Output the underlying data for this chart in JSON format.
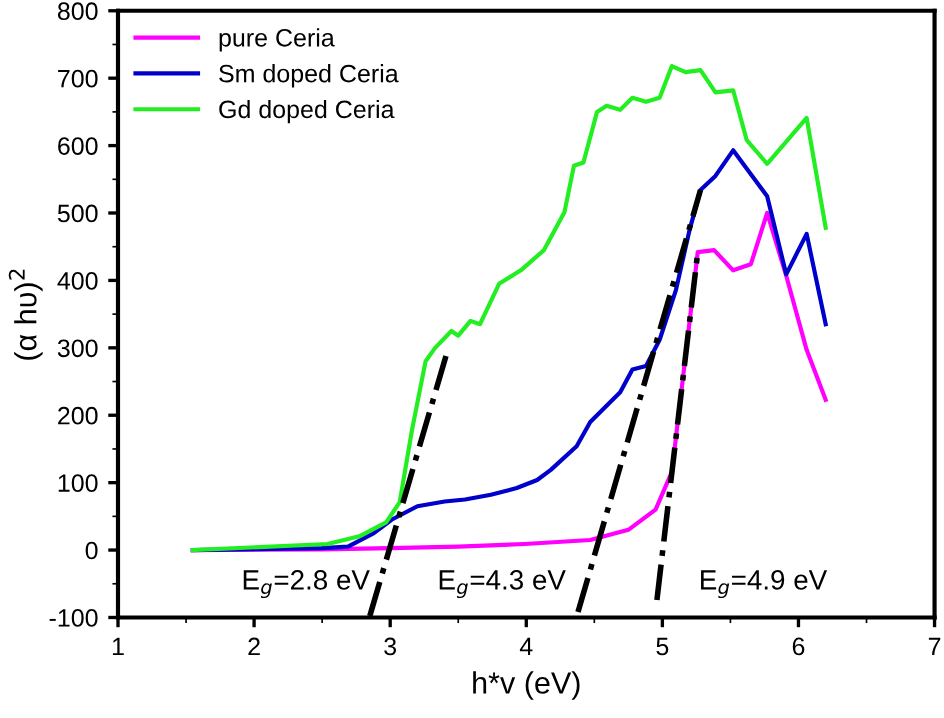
{
  "chart_data": {
    "type": "line",
    "xlabel": "h*v (eV)",
    "ylabel": "(α hυ)$^{2}$",
    "xlim": [
      1,
      7
    ],
    "xticks": [
      1,
      2,
      3,
      4,
      5,
      6,
      7
    ],
    "ylim": [
      -100,
      800
    ],
    "yticks": [
      -100,
      0,
      100,
      200,
      300,
      400,
      500,
      600,
      700,
      800
    ],
    "grid": false,
    "legend": "top left",
    "marker": "none",
    "line_style": "solid",
    "series": [
      {
        "name": "pure Ceria",
        "color": "#ff00ff",
        "x": [
          1.55,
          2.5,
          3.0,
          3.5,
          3.99,
          4.47,
          4.75,
          4.95,
          5.07,
          5.26,
          5.38,
          5.52,
          5.65,
          5.77,
          5.91,
          6.06,
          6.2
        ],
        "values": [
          0,
          1,
          3,
          5,
          9,
          15,
          30,
          60,
          116,
          442,
          445,
          415,
          424,
          500,
          407,
          297,
          223
        ]
      },
      {
        "name": "Sm doped Ceria",
        "color": "#0000cc",
        "x": [
          1.55,
          2.5,
          2.69,
          2.88,
          3.01,
          3.2,
          3.4,
          3.55,
          3.74,
          3.93,
          4.08,
          4.18,
          4.37,
          4.47,
          4.59,
          4.69,
          4.78,
          4.88,
          4.98,
          5.1,
          5.2,
          5.28,
          5.39,
          5.52,
          5.77,
          5.91,
          6.06,
          6.2
        ],
        "values": [
          0,
          3,
          5,
          25,
          45,
          65,
          72,
          75,
          82,
          92,
          104,
          119,
          154,
          190,
          214,
          234,
          268,
          273,
          312,
          386,
          475,
          534,
          555,
          593,
          525,
          409,
          469,
          335
        ]
      },
      {
        "name": "Gd doped Ceria",
        "color": "#22ee22",
        "x": [
          1.55,
          2.54,
          2.78,
          2.97,
          3.07,
          3.16,
          3.26,
          3.33,
          3.45,
          3.5,
          3.59,
          3.66,
          3.8,
          3.96,
          4.13,
          4.28,
          4.35,
          4.42,
          4.52,
          4.59,
          4.69,
          4.78,
          4.88,
          4.98,
          5.07,
          5.17,
          5.28,
          5.39,
          5.52,
          5.62,
          5.77,
          6.06,
          6.2
        ],
        "values": [
          0,
          9,
          21,
          41,
          71,
          178,
          280,
          300,
          325,
          318,
          340,
          335,
          395,
          415,
          445,
          501,
          570,
          575,
          650,
          659,
          653,
          671,
          665,
          671,
          718,
          709,
          712,
          679,
          682,
          608,
          573,
          641,
          478
        ]
      },
      {
        "color": "#000000",
        "line_style": "dashdot",
        "x": [
          2.85,
          3.41
        ],
        "values": [
          -98,
          288
        ]
      },
      {
        "color": "#000000",
        "line_style": "dashdot",
        "x": [
          4.38,
          5.28
        ],
        "values": [
          -92,
          534
        ]
      },
      {
        "color": "#000000",
        "line_style": "dashdot",
        "x": [
          4.96,
          5.26
        ],
        "values": [
          -74,
          442
        ]
      }
    ],
    "annotations": [
      "E$_{g}$=2.8 eV",
      "E$_{g}$=4.3 eV",
      "E$_{g}$=4.9 eV"
    ]
  }
}
